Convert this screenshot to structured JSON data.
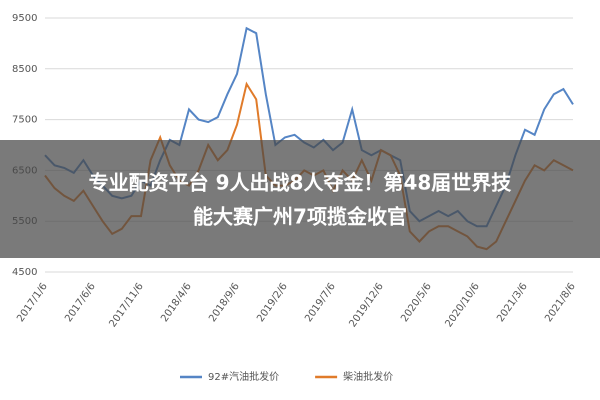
{
  "chart_data": {
    "type": "line",
    "annotations": [
      "专业配资平台 9人出战8人夺金！第48届世界技",
      "能大赛广州7项揽金收官"
    ],
    "categories": [
      "2017/1/6",
      null,
      null,
      null,
      null,
      "2017/6/6",
      null,
      null,
      null,
      null,
      "2017/11/6",
      null,
      null,
      null,
      null,
      "2018/4/6",
      null,
      null,
      null,
      null,
      "2018/9/6",
      null,
      null,
      null,
      null,
      "2019/2/6",
      null,
      null,
      null,
      null,
      "2019/7/6",
      null,
      null,
      null,
      null,
      "2019/12/6",
      null,
      null,
      null,
      null,
      "2020/5/6",
      null,
      null,
      null,
      null,
      "2020/10/6",
      null,
      null,
      null,
      null,
      "2021/3/6",
      null,
      null,
      null,
      null,
      "2021/8/6"
    ],
    "series": [
      {
        "name": "92#汽油批发价",
        "color": "#5585c5",
        "values": [
          6800,
          6600,
          6550,
          6450,
          6700,
          6400,
          6200,
          6000,
          5950,
          6000,
          6300,
          6200,
          6700,
          7100,
          7000,
          7700,
          7500,
          7450,
          7550,
          8000,
          8400,
          9300,
          9200,
          8000,
          7000,
          7150,
          7200,
          7050,
          6950,
          7100,
          6900,
          7050,
          7700,
          6900,
          6800,
          6900,
          6800,
          6700,
          5700,
          5500,
          5600,
          5700,
          5600,
          5700,
          5500,
          5400,
          5400,
          5800,
          6200,
          6800,
          7300,
          7200,
          7700,
          8000,
          8100,
          7800
        ]
      },
      {
        "name": "柴油批发价",
        "color": "#e07b2a",
        "values": [
          6400,
          6150,
          6000,
          5900,
          6100,
          5800,
          5500,
          5250,
          5350,
          5600,
          5600,
          6700,
          7150,
          6600,
          6300,
          6200,
          6500,
          7000,
          6700,
          6900,
          7400,
          8200,
          7900,
          6400,
          6200,
          6200,
          6300,
          6500,
          6400,
          6500,
          6100,
          6500,
          6300,
          6700,
          6300,
          6900,
          6800,
          6400,
          5300,
          5100,
          5300,
          5400,
          5400,
          5300,
          5200,
          5000,
          4950,
          5100,
          5500,
          5900,
          6300,
          6600,
          6500,
          6700,
          6600,
          6500
        ]
      }
    ],
    "ylim": [
      4500,
      9500
    ],
    "yticks": [
      4500,
      5500,
      6500,
      7500,
      8500,
      9500
    ],
    "grid": true,
    "legend": "bottom"
  }
}
